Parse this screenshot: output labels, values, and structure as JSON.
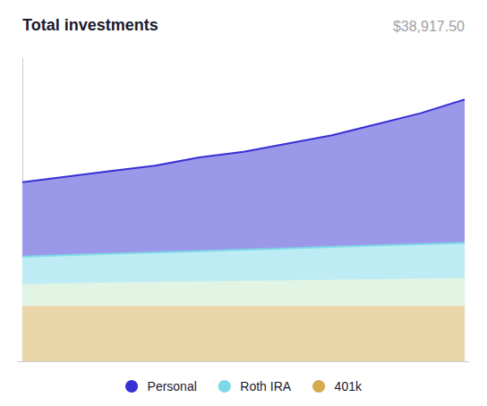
{
  "chart_data": {
    "type": "area",
    "title": "Total investments",
    "subtitle": "$38,917.50",
    "x": [
      0,
      1,
      2,
      3,
      4,
      5,
      6,
      7,
      8,
      9,
      10
    ],
    "series": [
      {
        "name": "Personal",
        "color": "#3730d4",
        "line_style": "solid",
        "values": [
          6.5,
          6.7,
          6.9,
          7.1,
          7.4,
          7.6,
          7.9,
          8.2,
          8.6,
          9.0,
          9.5
        ]
      },
      {
        "name": "Roth IRA",
        "color": "#7dd8e8",
        "line_style": "solid",
        "values": [
          3.8,
          3.85,
          3.9,
          3.95,
          4.0,
          4.05,
          4.1,
          4.15,
          4.2,
          4.25,
          4.3
        ]
      },
      {
        "color": "#c5e8c8",
        "line_style": "none",
        "values": [
          2.8,
          2.83,
          2.86,
          2.88,
          2.9,
          2.92,
          2.94,
          2.96,
          2.98,
          3.0,
          3.02
        ]
      },
      {
        "name": "401k",
        "color": "#d4aa50",
        "line_style": "none",
        "values": [
          2.0,
          2.0,
          2.0,
          2.0,
          2.0,
          2.0,
          2.0,
          2.0,
          2.0,
          2.0,
          2.0
        ]
      }
    ],
    "xlim": [
      -0.1,
      10.1
    ],
    "ylim": [
      0,
      11
    ],
    "tick_labels": false,
    "grid": false,
    "legend": "bottom"
  }
}
